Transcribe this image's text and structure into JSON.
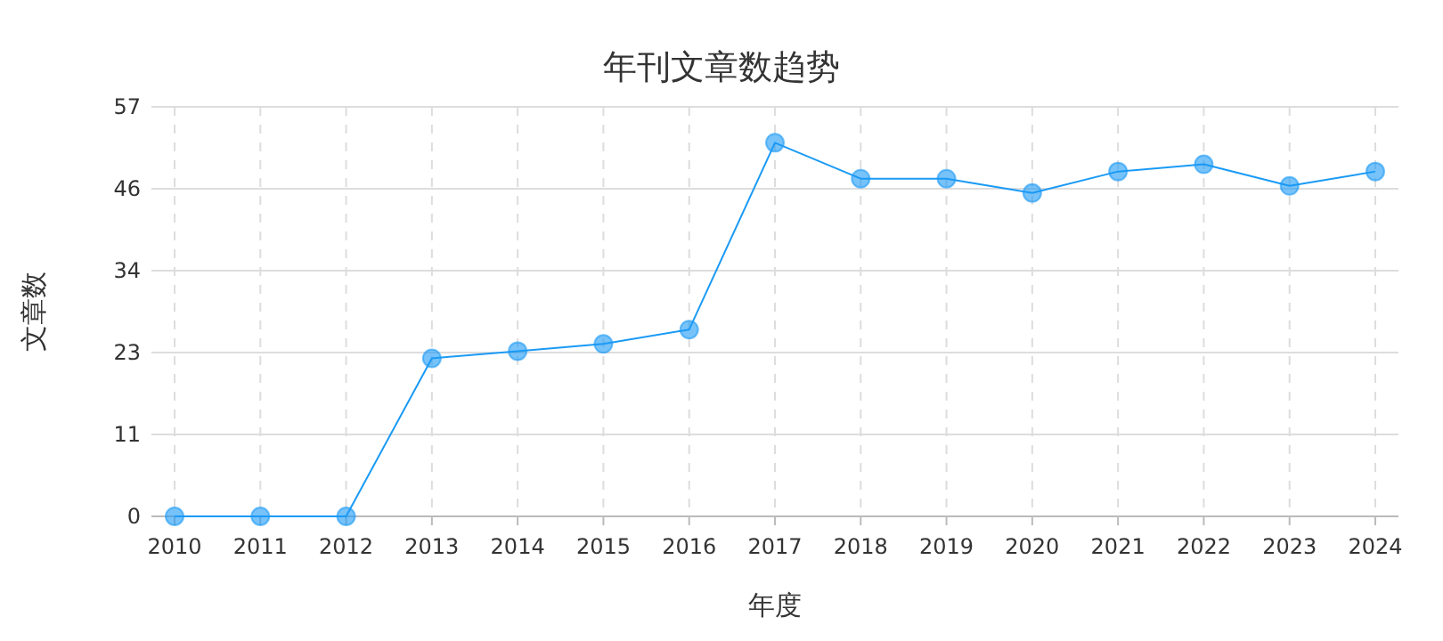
{
  "chart_data": {
    "type": "line",
    "title": "年刊文章数趋势",
    "xlabel": "年度",
    "ylabel": "文章数",
    "categories": [
      "2010",
      "2011",
      "2012",
      "2013",
      "2014",
      "2015",
      "2016",
      "2017",
      "2018",
      "2019",
      "2020",
      "2021",
      "2022",
      "2023",
      "2024"
    ],
    "series": [
      {
        "color": "#1a9af5",
        "values": [
          0,
          0,
          0,
          22,
          23,
          24,
          26,
          52,
          47,
          47,
          45,
          48,
          49,
          46,
          48
        ]
      }
    ],
    "ylim": [
      0,
      57
    ],
    "yticks": [
      0,
      {
        "value": 11.4,
        "label": "11"
      },
      {
        "value": 22.8,
        "label": "23"
      },
      {
        "value": 34.2,
        "label": "34"
      },
      {
        "value": 45.6,
        "label": "46"
      },
      57
    ],
    "grid": true,
    "marker": "circle",
    "line_style": "solid"
  }
}
